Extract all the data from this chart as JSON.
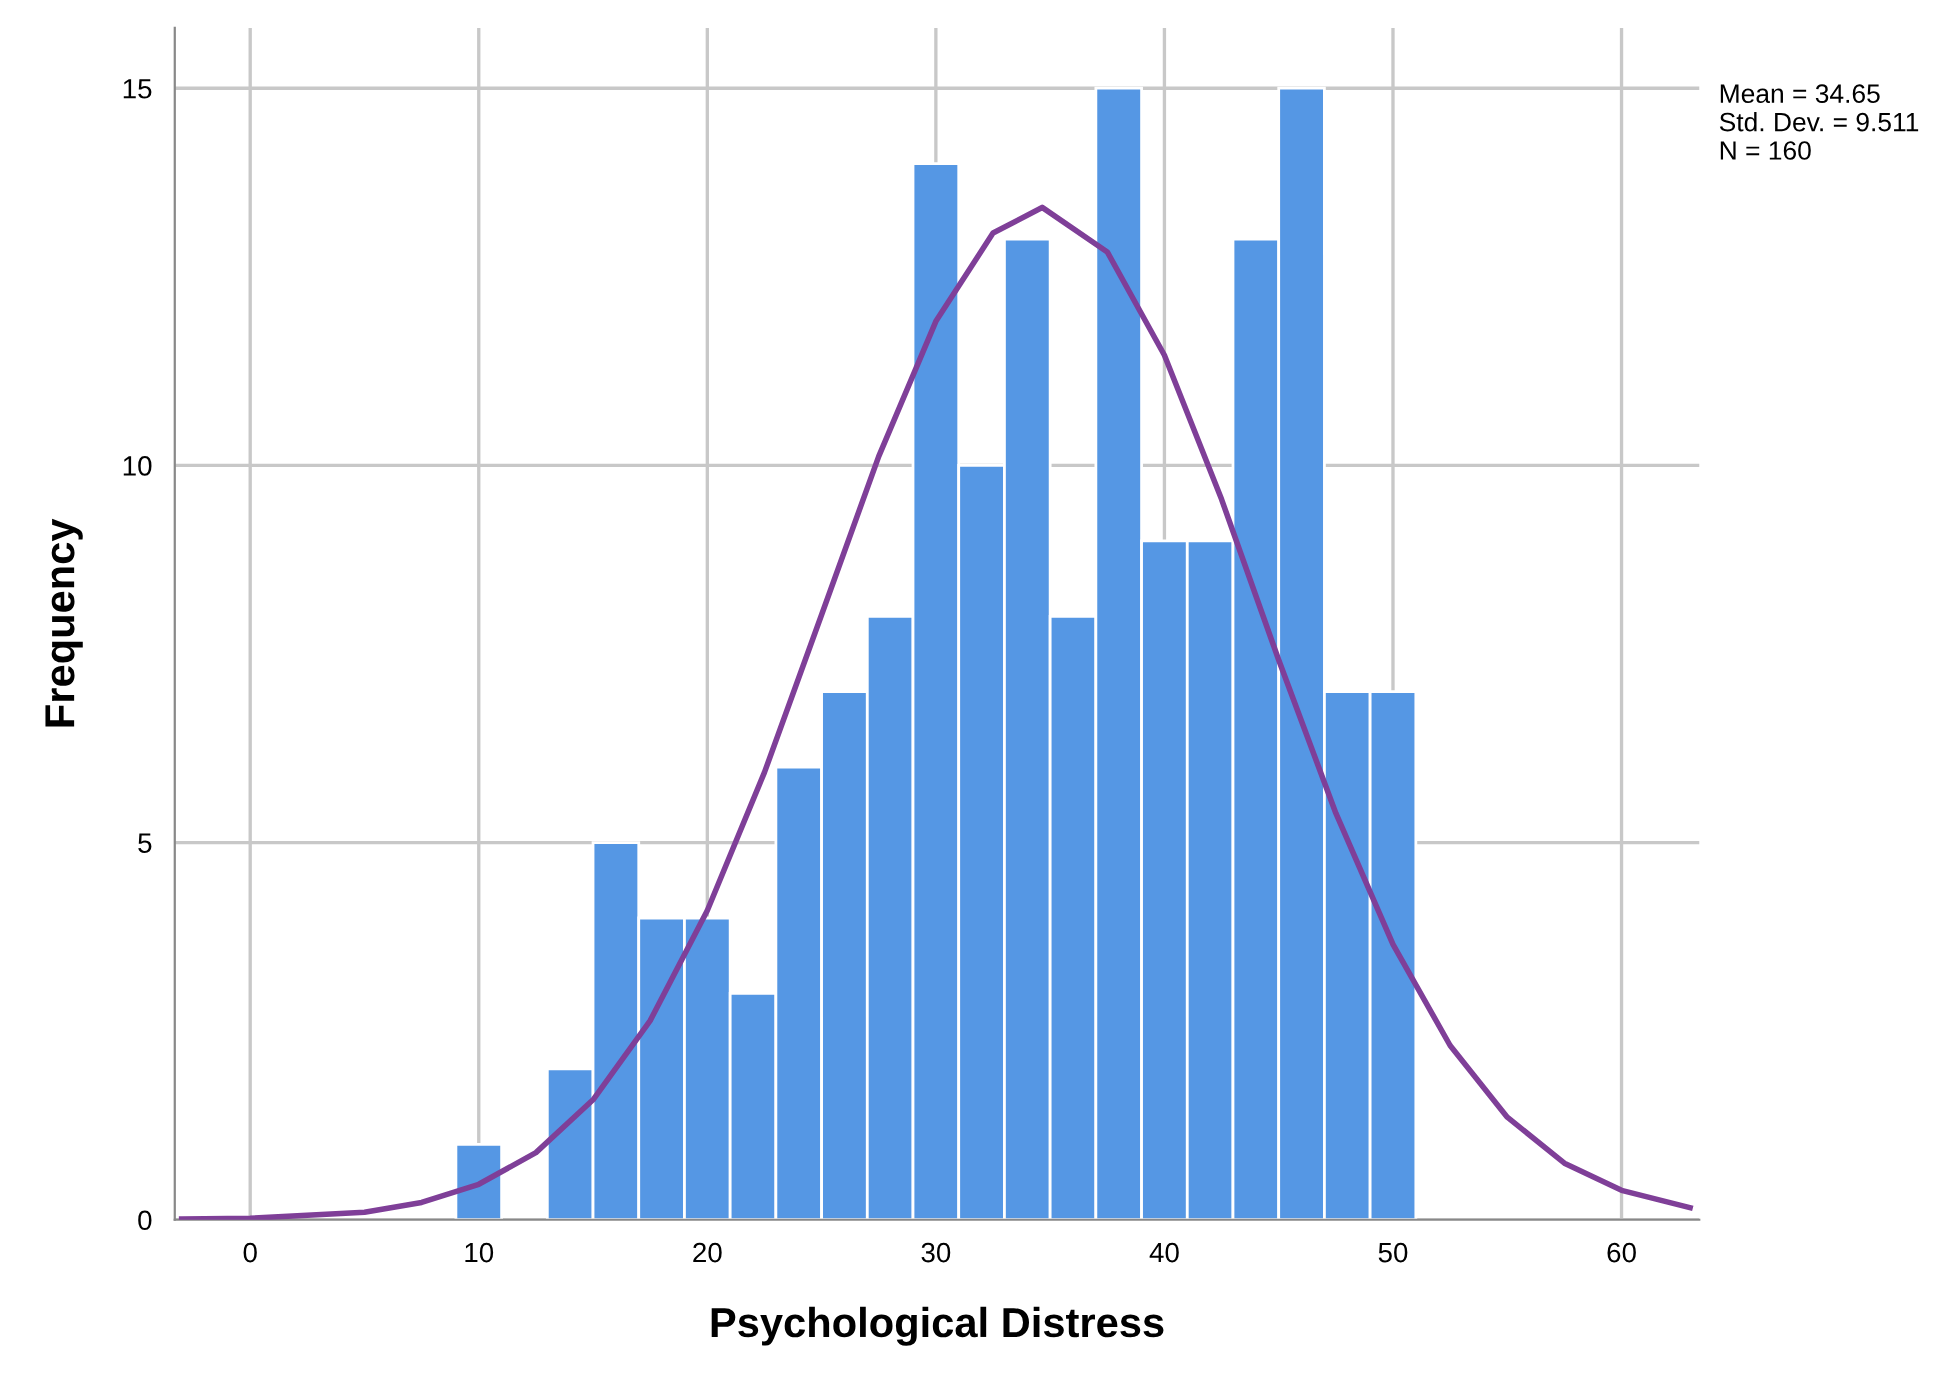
{
  "chart_data": {
    "type": "histogram",
    "xlabel": "Psychological Distress",
    "ylabel": "Frequency",
    "bins": [
      9,
      11,
      13,
      15,
      17,
      19,
      21,
      23,
      25,
      27,
      29,
      31,
      33,
      35,
      37,
      39,
      41,
      43,
      45,
      47,
      49,
      51
    ],
    "values": [
      1,
      0,
      2,
      5,
      4,
      4,
      3,
      6,
      7,
      8,
      14,
      10,
      13,
      8,
      15,
      9,
      9,
      13,
      15,
      7,
      7
    ],
    "color": "#5597e4",
    "series": [
      {
        "type": "line",
        "color": "#7f3f98",
        "x": [
          -3,
          0,
          5,
          7.5,
          10,
          12.5,
          15,
          17.5,
          20,
          22.5,
          25,
          27.5,
          30,
          32.5,
          34.65,
          37.5,
          40,
          42.5,
          45,
          47.5,
          50,
          52.5,
          55,
          57.5,
          60,
          63
        ],
        "values": [
          0.01,
          0.02,
          0.1,
          0.23,
          0.47,
          0.89,
          1.59,
          2.64,
          4.1,
          5.93,
          8.02,
          10.12,
          11.91,
          13.08,
          13.42,
          12.83,
          11.46,
          9.55,
          7.42,
          5.39,
          3.65,
          2.31,
          1.36,
          0.75,
          0.39,
          0.16
        ]
      }
    ],
    "xlim": [
      -3.3,
      63.4
    ],
    "ylim": [
      0,
      15.8
    ],
    "xticks": [
      0,
      10,
      20,
      30,
      40,
      50,
      60
    ],
    "yticks": [
      0,
      5,
      10,
      15
    ],
    "grid": true,
    "legend": false,
    "annotations": [
      "Mean = 34.65\nStd. Dev. = 9.511\nN = 160"
    ]
  }
}
